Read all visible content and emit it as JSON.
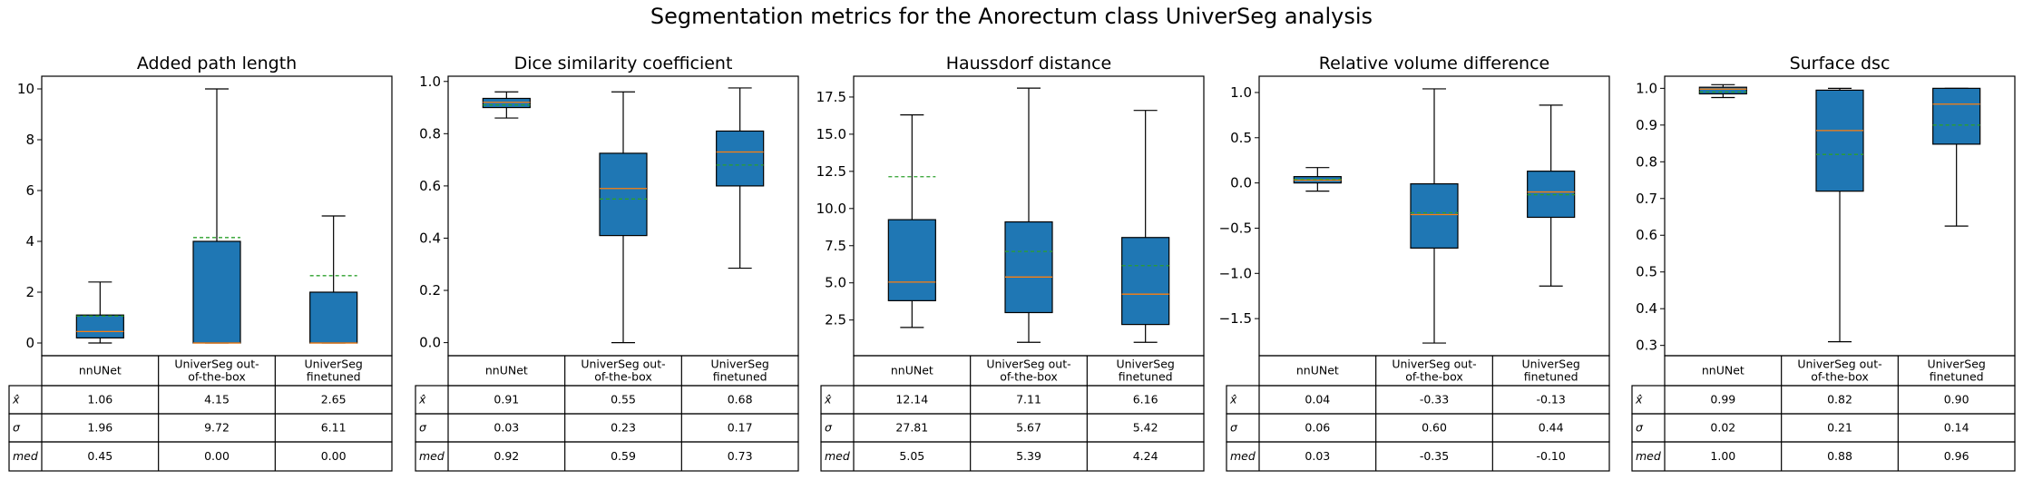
{
  "figure": {
    "suptitle": "Segmentation metrics for the Anorectum class UniverSeg analysis"
  },
  "colors": {
    "box_fill": "#1f77b4",
    "median": "#ff7f0e",
    "mean": "#2ca02c",
    "edge": "#000000"
  },
  "table_row_labels": [
    "x̂",
    "σ",
    "med"
  ],
  "chart_data": [
    {
      "type": "box",
      "title": "Added path length",
      "categories": [
        "nnUNet",
        "UniverSeg out-of-the-box",
        "UniverSeg finetuned"
      ],
      "category_lines": [
        [
          "nnUNet"
        ],
        [
          "UniverSeg out-",
          "of-the-box"
        ],
        [
          "UniverSeg",
          "finetuned"
        ]
      ],
      "ylim": [
        -0.5,
        10.5
      ],
      "yticks": [
        0,
        2,
        4,
        6,
        8,
        10
      ],
      "ytick_labels": [
        "0",
        "2",
        "4",
        "6",
        "8",
        "10"
      ],
      "boxes": [
        {
          "whislo": 0.0,
          "q1": 0.2,
          "med": 0.45,
          "q3": 1.1,
          "whishi": 2.4,
          "mean": 1.06
        },
        {
          "whislo": 0.0,
          "q1": 0.0,
          "med": 0.0,
          "q3": 4.0,
          "whishi": 10.0,
          "mean": 4.15
        },
        {
          "whislo": 0.0,
          "q1": 0.0,
          "med": 0.0,
          "q3": 2.0,
          "whishi": 5.0,
          "mean": 2.65
        }
      ],
      "table": [
        [
          "1.06",
          "4.15",
          "2.65"
        ],
        [
          "1.96",
          "9.72",
          "6.11"
        ],
        [
          "0.45",
          "0.00",
          "0.00"
        ]
      ]
    },
    {
      "type": "box",
      "title": "Dice similarity coefficient",
      "categories": [
        "nnUNet",
        "UniverSeg out-of-the-box",
        "UniverSeg finetuned"
      ],
      "category_lines": [
        [
          "nnUNet"
        ],
        [
          "UniverSeg out-",
          "of-the-box"
        ],
        [
          "UniverSeg",
          "finetuned"
        ]
      ],
      "ylim": [
        -0.05,
        1.02
      ],
      "yticks": [
        0.0,
        0.2,
        0.4,
        0.6,
        0.8,
        1.0
      ],
      "ytick_labels": [
        "0.0",
        "0.2",
        "0.4",
        "0.6",
        "0.8",
        "1.0"
      ],
      "boxes": [
        {
          "whislo": 0.86,
          "q1": 0.9,
          "med": 0.92,
          "q3": 0.935,
          "whishi": 0.96,
          "mean": 0.91
        },
        {
          "whislo": 0.0,
          "q1": 0.41,
          "med": 0.59,
          "q3": 0.725,
          "whishi": 0.96,
          "mean": 0.55
        },
        {
          "whislo": 0.285,
          "q1": 0.6,
          "med": 0.73,
          "q3": 0.81,
          "whishi": 0.975,
          "mean": 0.68
        }
      ],
      "table": [
        [
          "0.91",
          "0.55",
          "0.68"
        ],
        [
          "0.03",
          "0.23",
          "0.17"
        ],
        [
          "0.92",
          "0.59",
          "0.73"
        ]
      ]
    },
    {
      "type": "box",
      "title": "Haussdorf distance",
      "categories": [
        "nnUNet",
        "UniverSeg out-of-the-box",
        "UniverSeg finetuned"
      ],
      "category_lines": [
        [
          "nnUNet"
        ],
        [
          "UniverSeg out-",
          "of-the-box"
        ],
        [
          "UniverSeg",
          "finetuned"
        ]
      ],
      "ylim": [
        0.1,
        18.9
      ],
      "yticks": [
        2.5,
        5.0,
        7.5,
        10.0,
        12.5,
        15.0,
        17.5
      ],
      "ytick_labels": [
        "2.5",
        "5.0",
        "7.5",
        "10.0",
        "12.5",
        "15.0",
        "17.5"
      ],
      "boxes": [
        {
          "whislo": 2.0,
          "q1": 3.8,
          "med": 5.05,
          "q3": 9.25,
          "whishi": 16.3,
          "mean": 12.14
        },
        {
          "whislo": 1.0,
          "q1": 3.0,
          "med": 5.39,
          "q3": 9.1,
          "whishi": 18.1,
          "mean": 7.11
        },
        {
          "whislo": 1.0,
          "q1": 2.2,
          "med": 4.24,
          "q3": 8.05,
          "whishi": 16.6,
          "mean": 6.16
        }
      ],
      "table": [
        [
          "12.14",
          "7.11",
          "6.16"
        ],
        [
          "27.81",
          "5.67",
          "5.42"
        ],
        [
          "5.05",
          "5.39",
          "4.24"
        ]
      ]
    },
    {
      "type": "box",
      "title": "Relative volume difference",
      "categories": [
        "nnUNet",
        "UniverSeg out-of-the-box",
        "UniverSeg finetuned"
      ],
      "category_lines": [
        [
          "nnUNet"
        ],
        [
          "UniverSeg out-",
          "of-the-box"
        ],
        [
          "UniverSeg",
          "finetuned"
        ]
      ],
      "ylim": [
        -1.91,
        1.18
      ],
      "yticks": [
        -1.5,
        -1.0,
        -0.5,
        0.0,
        0.5,
        1.0
      ],
      "ytick_labels": [
        "−1.5",
        "−1.0",
        "−0.5",
        "0.0",
        "0.5",
        "1.0"
      ],
      "boxes": [
        {
          "whislo": -0.09,
          "q1": 0.0,
          "med": 0.03,
          "q3": 0.07,
          "whishi": 0.17,
          "mean": 0.04
        },
        {
          "whislo": -1.77,
          "q1": -0.72,
          "med": -0.35,
          "q3": -0.01,
          "whishi": 1.04,
          "mean": -0.33
        },
        {
          "whislo": -1.14,
          "q1": -0.38,
          "med": -0.1,
          "q3": 0.13,
          "whishi": 0.86,
          "mean": -0.13
        }
      ],
      "table": [
        [
          "0.04",
          "-0.33",
          "-0.13"
        ],
        [
          "0.06",
          "0.60",
          "0.44"
        ],
        [
          "0.03",
          "-0.35",
          "-0.10"
        ]
      ]
    },
    {
      "type": "box",
      "title": "Surface dsc",
      "categories": [
        "nnUNet",
        "UniverSeg out-of-the-box",
        "UniverSeg finetuned"
      ],
      "category_lines": [
        [
          "nnUNet"
        ],
        [
          "UniverSeg out-",
          "of-the-box"
        ],
        [
          "UniverSeg",
          "finetuned"
        ]
      ],
      "ylim": [
        0.272,
        1.033
      ],
      "yticks": [
        0.3,
        0.4,
        0.5,
        0.6,
        0.7,
        0.8,
        0.9,
        1.0
      ],
      "ytick_labels": [
        "0.3",
        "0.4",
        "0.5",
        "0.6",
        "0.7",
        "0.8",
        "0.9",
        "1.0"
      ],
      "boxes": [
        {
          "whislo": 0.975,
          "q1": 0.985,
          "med": 0.998,
          "q3": 1.003,
          "whishi": 1.01,
          "mean": 0.99
        },
        {
          "whislo": 0.31,
          "q1": 0.72,
          "med": 0.885,
          "q3": 0.995,
          "whishi": 1.0,
          "mean": 0.82
        },
        {
          "whislo": 0.625,
          "q1": 0.848,
          "med": 0.957,
          "q3": 1.0,
          "whishi": 1.0,
          "mean": 0.9
        }
      ],
      "table": [
        [
          "0.99",
          "0.82",
          "0.90"
        ],
        [
          "0.02",
          "0.21",
          "0.14"
        ],
        [
          "1.00",
          "0.88",
          "0.96"
        ]
      ]
    }
  ]
}
